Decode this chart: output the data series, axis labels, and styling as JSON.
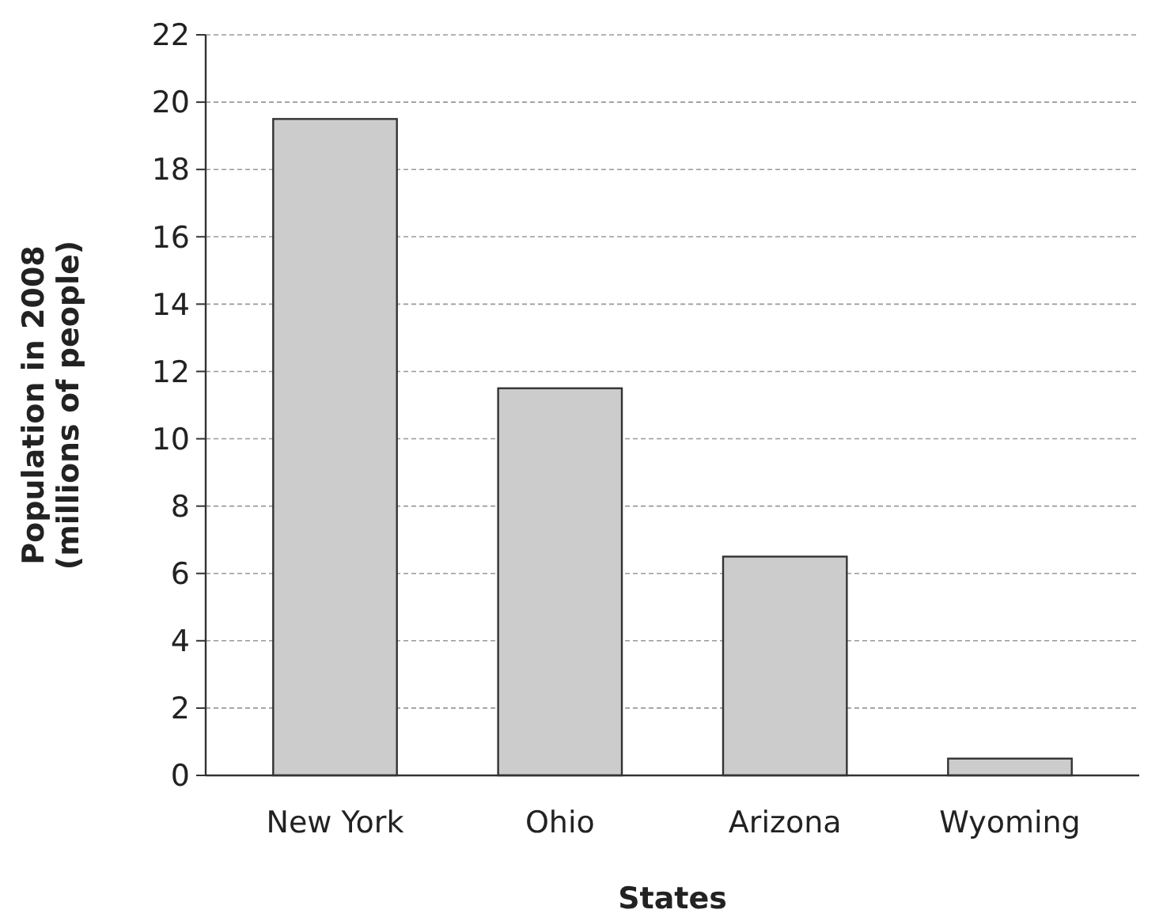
{
  "chart_data": {
    "type": "bar",
    "xlabel": "States",
    "ylabel": "Population in 2008\n(millions of people)",
    "categories": [
      "New York",
      "Ohio",
      "Arizona",
      "Wyoming"
    ],
    "values": [
      19.5,
      11.5,
      6.5,
      0.5
    ],
    "color": "#cccccc",
    "ylim": [
      0,
      22
    ],
    "yticks": [
      0,
      2,
      4,
      6,
      8,
      10,
      12,
      14,
      16,
      18,
      20,
      22
    ],
    "grid": "y"
  }
}
